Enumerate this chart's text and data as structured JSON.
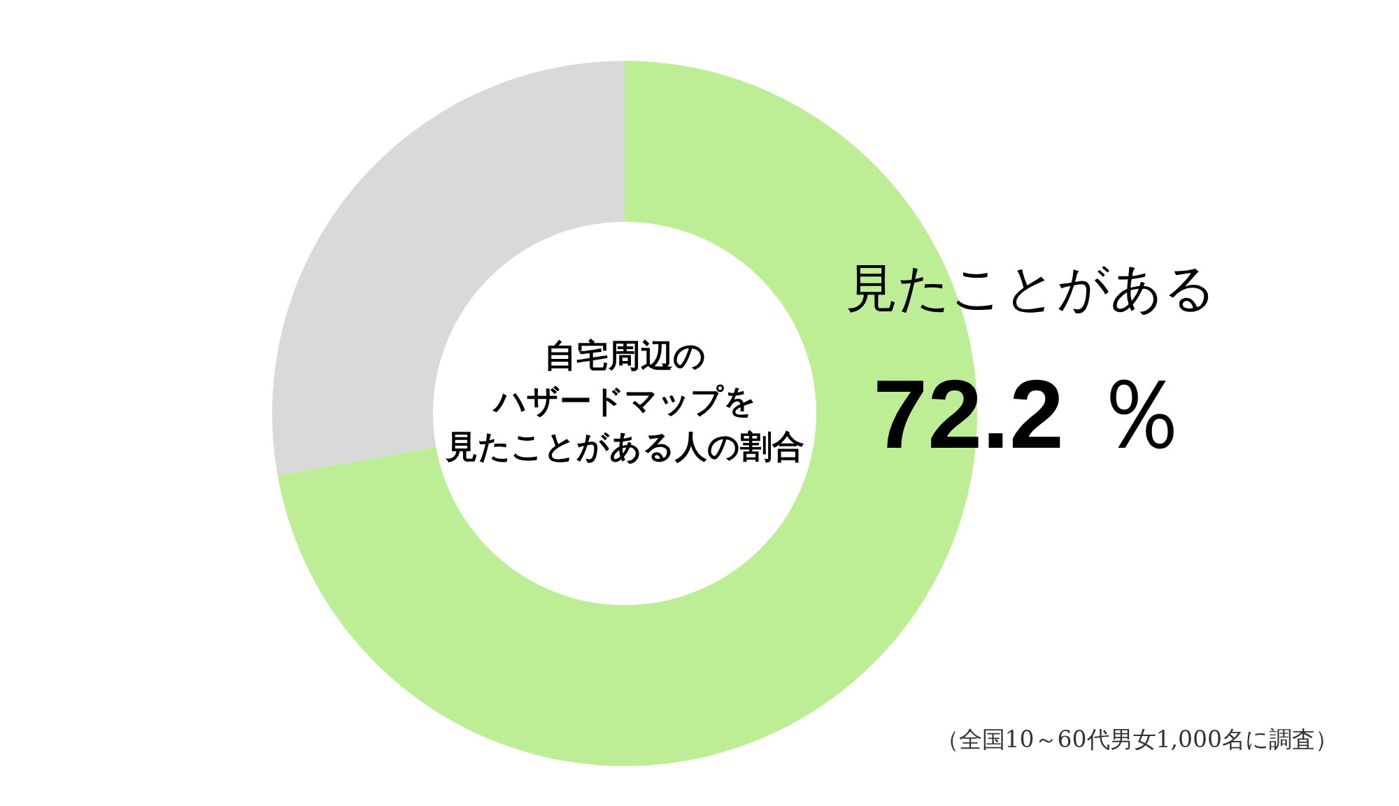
{
  "chart_data": {
    "type": "donut",
    "title": "自宅周辺のハザードマップを見たことがある人の割合",
    "categories": [
      "見たことがある",
      null
    ],
    "values": [
      72.2,
      27.8
    ],
    "colors": [
      "#bded95",
      "#d9d9d9"
    ],
    "value_labels": [
      "**72.2** ％",
      null
    ],
    "annotations": [
      "（全国10～60代男女1,000名に調査）"
    ]
  }
}
